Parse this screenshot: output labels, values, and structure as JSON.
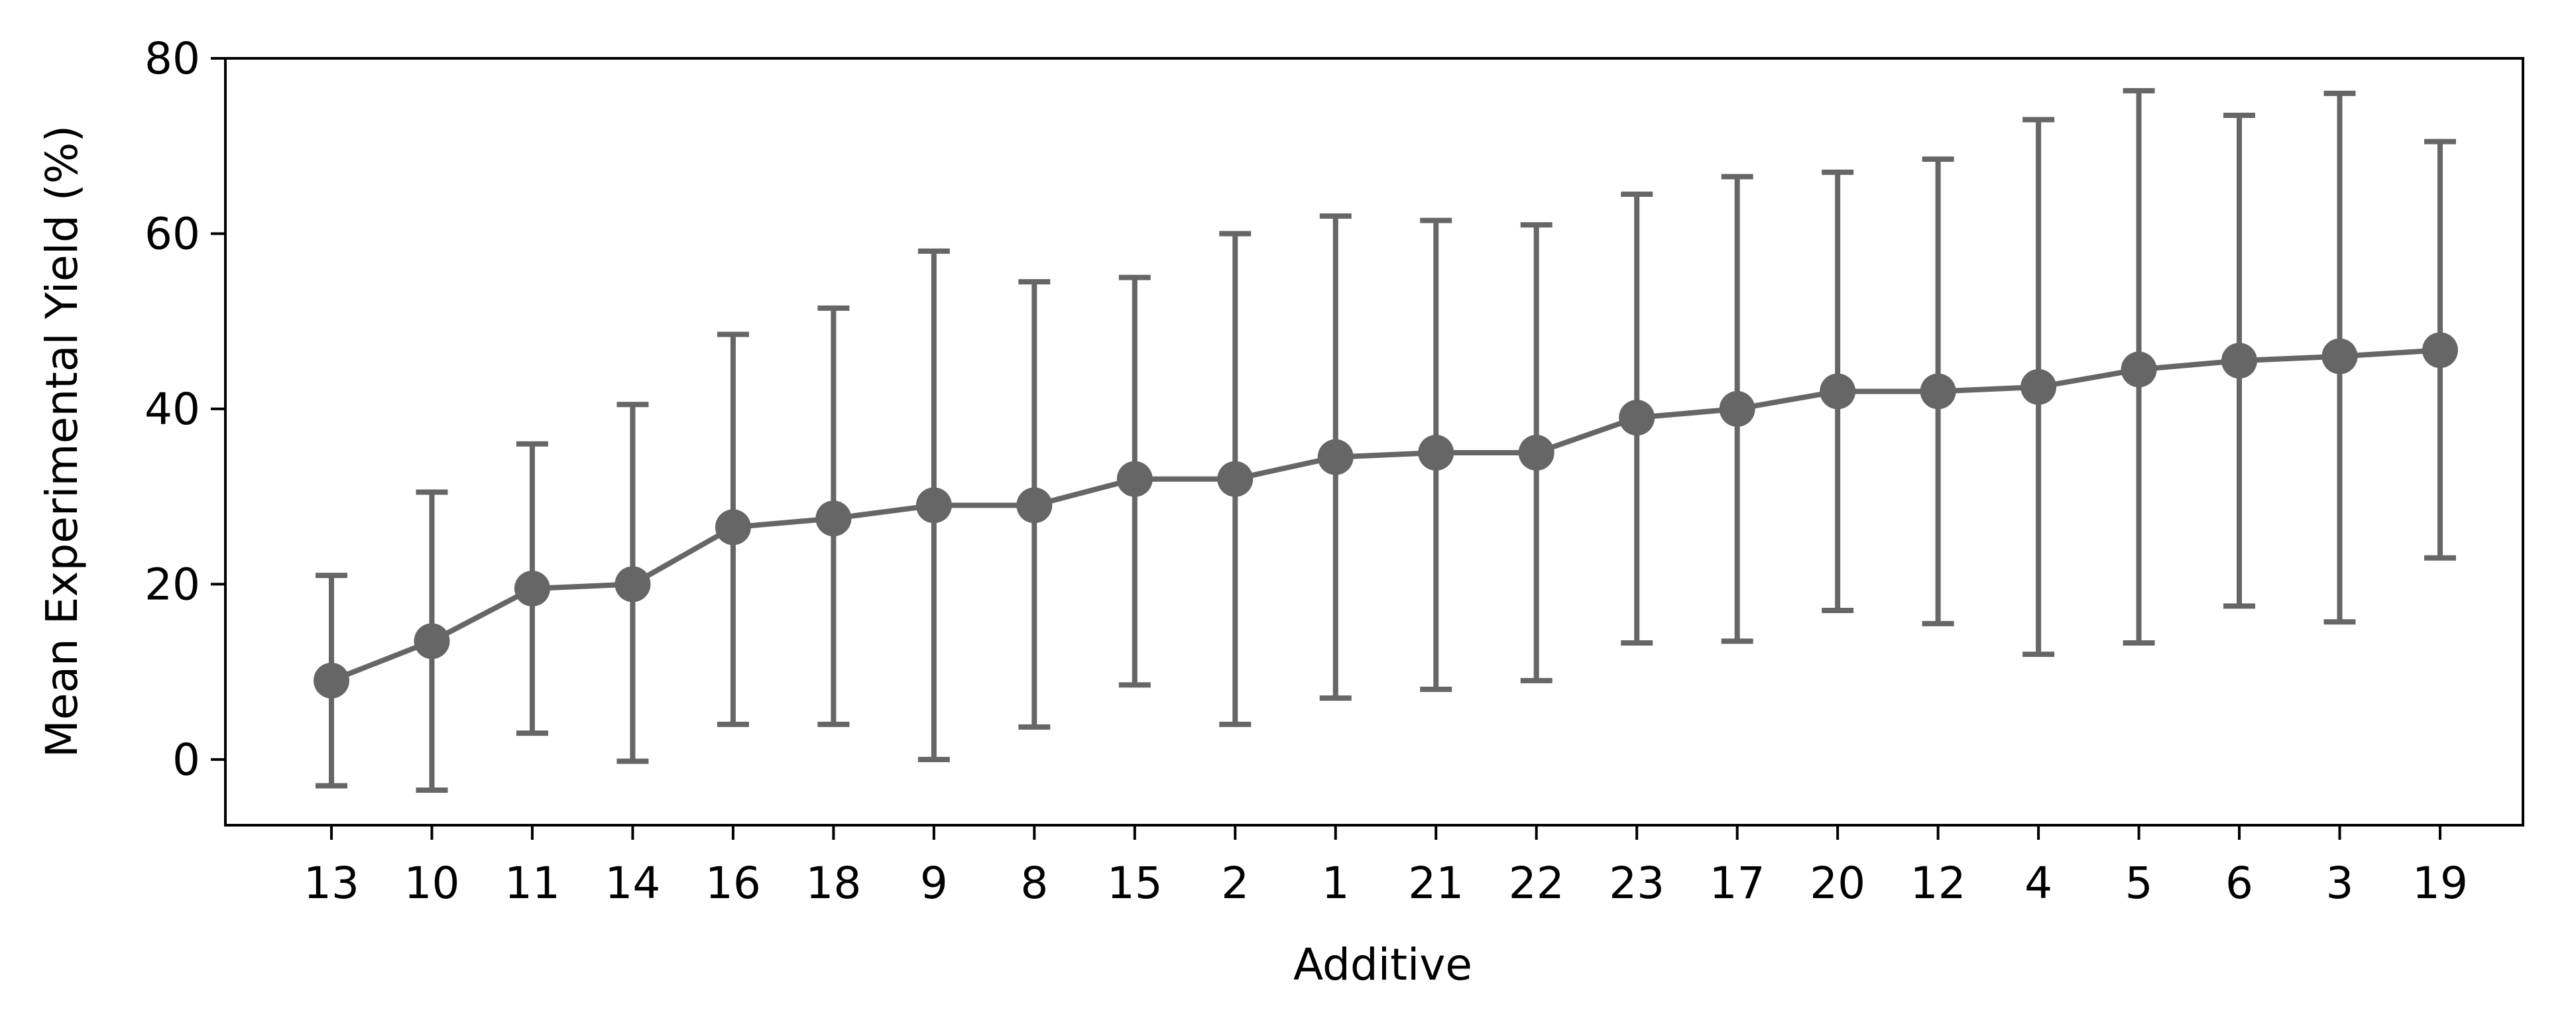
{
  "chart_data": {
    "type": "line",
    "xlabel": "Additive",
    "ylabel": "Mean Experimental Yield (%)",
    "ylim": [
      -7.5,
      80
    ],
    "yticks": [
      0,
      20,
      40,
      60,
      80
    ],
    "grid": false,
    "color": "#666666",
    "categories": [
      "13",
      "10",
      "11",
      "14",
      "16",
      "18",
      "9",
      "8",
      "15",
      "2",
      "1",
      "21",
      "22",
      "23",
      "17",
      "20",
      "12",
      "4",
      "5",
      "6",
      "3",
      "19"
    ],
    "series": [
      {
        "values": [
          9.0,
          13.5,
          19.5,
          20.0,
          26.5,
          27.5,
          29.0,
          29.0,
          32.0,
          32.0,
          34.5,
          35.0,
          35.0,
          39.0,
          40.0,
          42.0,
          42.0,
          42.5,
          44.5,
          45.5,
          46.0,
          46.7
        ],
        "lower": [
          -3.0,
          -3.5,
          3.0,
          -0.2,
          4.0,
          4.0,
          0.0,
          3.7,
          8.5,
          4.0,
          7.0,
          8.0,
          9.0,
          13.3,
          13.5,
          17.0,
          15.5,
          12.0,
          13.3,
          17.5,
          15.7,
          23.0
        ],
        "upper": [
          21.0,
          30.5,
          36.0,
          40.5,
          48.5,
          51.5,
          58.0,
          54.5,
          55.0,
          60.0,
          62.0,
          61.5,
          61.0,
          64.5,
          66.5,
          67.0,
          68.5,
          73.0,
          76.3,
          73.5,
          76.0,
          70.5
        ]
      }
    ]
  }
}
